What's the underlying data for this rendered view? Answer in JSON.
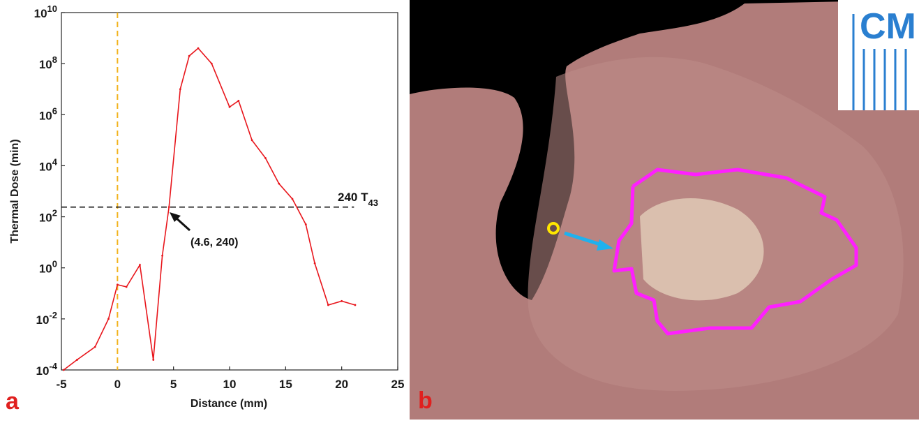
{
  "panel_labels": {
    "a": "a",
    "b": "b"
  },
  "colors": {
    "series": "#e8151b",
    "zero_line": "#f2b21b",
    "threshold_line": "#111111",
    "panel_label": "#e0201f",
    "ablation_outline": "#ff1fff",
    "marker": "#ffe600",
    "arrow": "#1fb1ee",
    "specimen": "#b88682",
    "background_b": "#000000"
  },
  "chart_data": {
    "type": "line",
    "xlabel": "Distance (mm)",
    "ylabel": "Thermal Dose (min)",
    "xlim": [
      -5,
      25
    ],
    "ylim_log10": [
      -4,
      10
    ],
    "y_scale": "log",
    "x_ticks": [
      "-5",
      "0",
      "5",
      "10",
      "15",
      "20",
      "25"
    ],
    "y_tick_exponents": [
      "-4",
      "-2",
      "0",
      "2",
      "4",
      "6",
      "8",
      "10"
    ],
    "y_tick_base": "10",
    "zero_line_x": 0,
    "threshold": {
      "value": 240,
      "label_main": "240 T",
      "label_sub": "43"
    },
    "annotation": {
      "text": "(4.6, 240)",
      "x": 4.6,
      "y": 240
    },
    "series": [
      {
        "x": [
          -4.8,
          -3.6,
          -2.0,
          -0.8,
          0.0,
          0.8,
          2.0,
          3.2,
          4.0,
          4.6,
          5.6,
          6.4,
          7.2,
          8.4,
          10.0,
          10.8,
          12.0,
          13.2,
          14.4,
          15.6,
          16.8,
          17.6,
          18.8,
          20.0,
          21.2
        ],
        "y": [
          0.0001,
          0.00025,
          0.0008,
          0.01,
          0.22,
          0.18,
          1.3,
          0.00025,
          3,
          240,
          10000000.0,
          200000000.0,
          400000000.0,
          100000000.0,
          2000000.0,
          3500000.0,
          100000.0,
          20000.0,
          2000,
          500,
          50,
          1.5,
          0.035,
          0.05,
          0.035
        ]
      }
    ]
  }
}
